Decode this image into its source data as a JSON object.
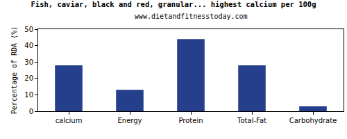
{
  "chart_data": {
    "type": "bar",
    "title": "Fish, caviar, black and red, granular... highest calcium per 100g",
    "subtitle": "www.dietandfitnesstoday.com",
    "y_label": "Percentage of RDA (%)",
    "categories": [
      "calcium",
      "Energy",
      "Protein",
      "Total-Fat",
      "Carbohydrate"
    ],
    "values": [
      28,
      13,
      44,
      28,
      3
    ],
    "color": "#263f8c",
    "ylim": [
      0,
      50
    ],
    "yticks": [
      0,
      10,
      20,
      30,
      40,
      50
    ],
    "grid": false
  }
}
